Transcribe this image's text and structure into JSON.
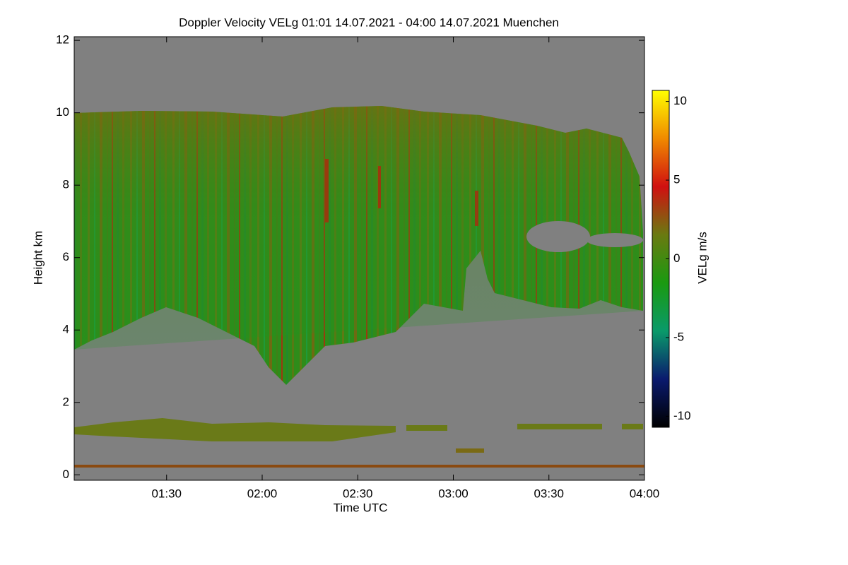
{
  "chart_data": {
    "type": "heatmap",
    "title": "Doppler Velocity VELg   01:01 14.07.2021 - 04:00 14.07.2021 Muenchen",
    "x_label": "Time UTC",
    "y_label": "Height km",
    "xlim": [
      61,
      240
    ],
    "xticks": [
      {
        "value": 90,
        "label": "01:30"
      },
      {
        "value": 120,
        "label": "02:00"
      },
      {
        "value": 150,
        "label": "02:30"
      },
      {
        "value": 180,
        "label": "03:00"
      },
      {
        "value": 210,
        "label": "03:30"
      },
      {
        "value": 240,
        "label": "04:00"
      }
    ],
    "ylim": [
      -0.15,
      12.1
    ],
    "yticks": [
      0,
      2,
      4,
      6,
      8,
      10,
      12
    ],
    "background": "#808080",
    "colorbar": {
      "label": "VELg m/s",
      "lim": [
        -10.7,
        10.7
      ],
      "ticks": [
        -10,
        -5,
        0,
        5,
        10
      ],
      "colors": [
        "#000000",
        "#0a1a6e",
        "#0a9a6a",
        "#1a9a10",
        "#6a7a10",
        "#d01010",
        "#f08a00",
        "#ffff00"
      ]
    }
  }
}
